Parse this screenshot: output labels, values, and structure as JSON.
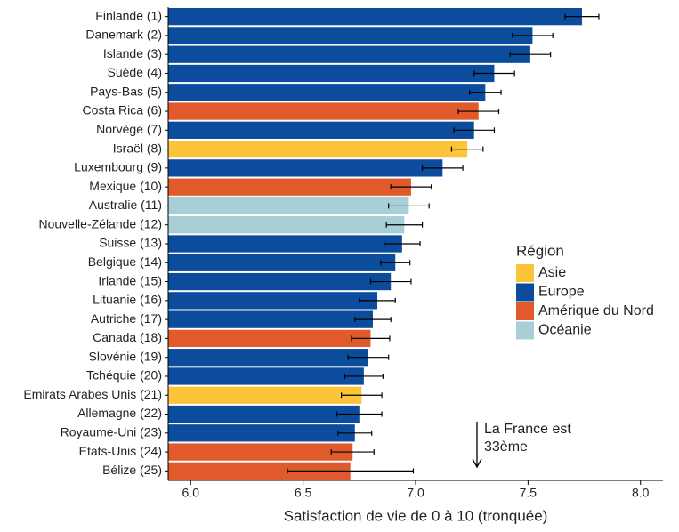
{
  "chart_data": {
    "type": "hbar",
    "xlabel": "Satisfaction de vie de 0 à 10 (tronquée)",
    "categories": [
      "Finlande (1)",
      "Danemark (2)",
      "Islande (3)",
      "Suède (4)",
      "Pays-Bas (5)",
      "Costa Rica (6)",
      "Norvège (7)",
      "Israël (8)",
      "Luxembourg (9)",
      "Mexique (10)",
      "Australie (11)",
      "Nouvelle-Zélande (12)",
      "Suisse (13)",
      "Belgique (14)",
      "Irlande (15)",
      "Lituanie (16)",
      "Autriche (17)",
      "Canada (18)",
      "Slovénie (19)",
      "Tchéquie (20)",
      "Emirats Arabes Unis (21)",
      "Allemagne (22)",
      "Royaume-Uni (23)",
      "Etats-Unis (24)",
      "Bélize (25)"
    ],
    "values": [
      7.74,
      7.52,
      7.51,
      7.35,
      7.31,
      7.28,
      7.26,
      7.23,
      7.12,
      6.98,
      6.97,
      6.95,
      6.94,
      6.91,
      6.89,
      6.83,
      6.81,
      6.8,
      6.79,
      6.77,
      6.76,
      6.75,
      6.73,
      6.72,
      6.71
    ],
    "errors": [
      0.075,
      0.09,
      0.09,
      0.09,
      0.07,
      0.09,
      0.09,
      0.07,
      0.09,
      0.09,
      0.09,
      0.08,
      0.08,
      0.065,
      0.09,
      0.08,
      0.08,
      0.085,
      0.09,
      0.085,
      0.09,
      0.1,
      0.075,
      0.095,
      0.28
    ],
    "colors": [
      "#0b4c9c",
      "#0b4c9c",
      "#0b4c9c",
      "#0b4c9c",
      "#0b4c9c",
      "#e05a2b",
      "#0b4c9c",
      "#fcc539",
      "#0b4c9c",
      "#e05a2b",
      "#a8cfd8",
      "#a8cfd8",
      "#0b4c9c",
      "#0b4c9c",
      "#0b4c9c",
      "#0b4c9c",
      "#0b4c9c",
      "#e05a2b",
      "#0b4c9c",
      "#0b4c9c",
      "#fcc539",
      "#0b4c9c",
      "#0b4c9c",
      "#e05a2b",
      "#e05a2b"
    ],
    "xlim": [
      5.9,
      8.1
    ],
    "xticks": [
      {
        "value": 6,
        "label": "6.0"
      },
      {
        "value": 6.5,
        "label": "6.5"
      },
      {
        "value": 7,
        "label": "7.0"
      },
      {
        "value": 7.5,
        "label": "7.5"
      },
      {
        "value": 8,
        "label": "8.0"
      }
    ],
    "legend": {
      "title": "Région",
      "items": [
        {
          "name": "Asie",
          "color": "#fcc539"
        },
        {
          "name": "Europe",
          "color": "#0b4c9c"
        },
        {
          "name": "Amérique du Nord",
          "color": "#e05a2b"
        },
        {
          "name": "Océanie",
          "color": "#a8cfd8"
        }
      ]
    },
    "annotation": [
      "La France est",
      "33ème"
    ]
  }
}
